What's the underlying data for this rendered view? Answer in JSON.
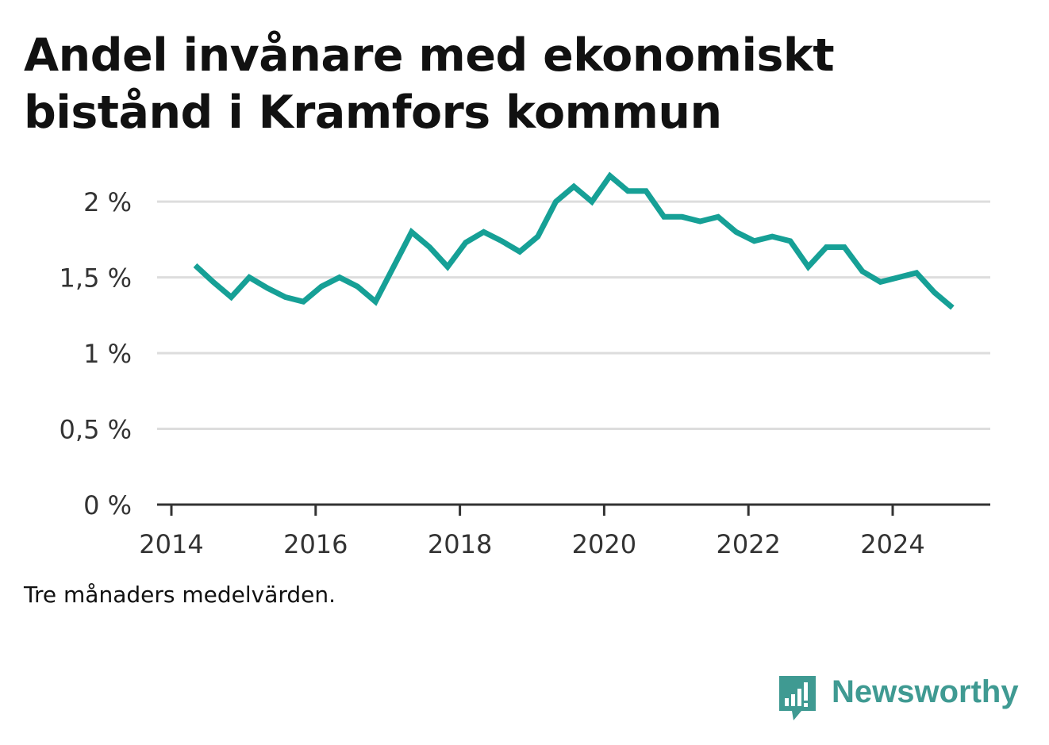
{
  "title_lines": [
    "Andel invånare med ekonomiskt",
    "bistånd i Kramfors kommun"
  ],
  "note": "Tre månaders medelvärden.",
  "brand": "Newsworthy",
  "colors": {
    "line": "#16a096",
    "grid": "#dddddd",
    "axis": "#333333",
    "brand": "#3f9a92"
  },
  "chart_data": {
    "type": "line",
    "x_ticks": [
      2014,
      2016,
      2018,
      2020,
      2022,
      2024
    ],
    "y_ticks": [
      0,
      0.5,
      1,
      1.5,
      2
    ],
    "y_tick_labels": [
      "0 %",
      "0,5 %",
      "1 %",
      "1,5 %",
      "2 %"
    ],
    "xlim": [
      2014,
      2025.4
    ],
    "ylim": [
      0,
      2.2
    ],
    "grid": true,
    "series": [
      {
        "x": [
          2014.33,
          2014.58,
          2014.83,
          2015.08,
          2015.33,
          2015.58,
          2015.83,
          2016.08,
          2016.33,
          2016.58,
          2016.83,
          2017.08,
          2017.33,
          2017.58,
          2017.83,
          2018.08,
          2018.33,
          2018.58,
          2018.83,
          2019.08,
          2019.33,
          2019.58,
          2019.83,
          2020.08,
          2020.33,
          2020.58,
          2020.83,
          2021.08,
          2021.33,
          2021.58,
          2021.83,
          2022.08,
          2022.33,
          2022.58,
          2022.83,
          2023.08,
          2023.33,
          2023.58,
          2023.83,
          2024.08,
          2024.33,
          2024.58,
          2024.83
        ],
        "y": [
          1.58,
          1.47,
          1.37,
          1.5,
          1.43,
          1.37,
          1.34,
          1.44,
          1.5,
          1.44,
          1.34,
          1.57,
          1.8,
          1.7,
          1.57,
          1.73,
          1.8,
          1.74,
          1.67,
          1.77,
          2.0,
          2.1,
          2.0,
          2.17,
          2.07,
          2.07,
          1.9,
          1.9,
          1.87,
          1.9,
          1.8,
          1.74,
          1.77,
          1.74,
          1.57,
          1.7,
          1.7,
          1.54,
          1.47,
          1.5,
          1.53,
          1.4,
          1.3
        ]
      }
    ]
  }
}
